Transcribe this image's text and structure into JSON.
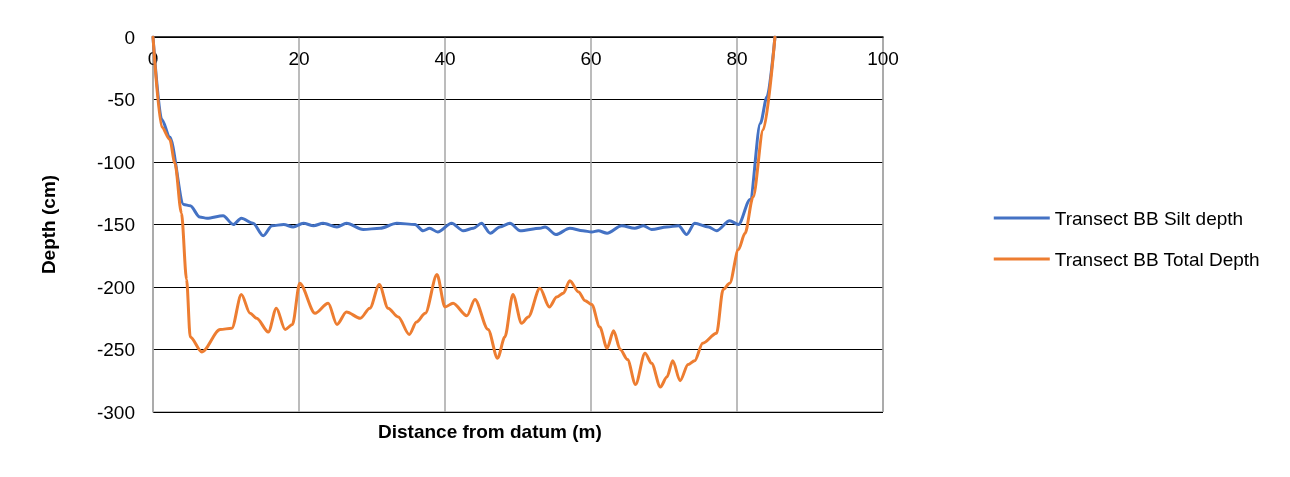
{
  "chart_data": {
    "type": "line",
    "xlabel": "Distance from datum (m)",
    "ylabel": "Depth (cm)",
    "xlim": [
      0,
      100
    ],
    "xticks": [
      0,
      20,
      40,
      60,
      80,
      100
    ],
    "ylim": [
      -300,
      0
    ],
    "yticks": [
      -300,
      -250,
      -200,
      -150,
      -100,
      -50,
      0
    ],
    "grid": true,
    "legend": "right",
    "marker": "none",
    "line_style": "solid",
    "series": [
      {
        "name": "Transect BB Silt depth",
        "color": "#4472c4",
        "x": [
          0,
          1.2,
          2.3,
          4.2,
          5.1,
          6.4,
          7.4,
          9.6,
          11,
          12.1,
          13.7,
          15.1,
          16.3,
          17.9,
          19.2,
          20.6,
          22,
          23.3,
          25.2,
          26.5,
          28.8,
          31.1,
          33.4,
          35.9,
          37,
          37.9,
          39,
          40.9,
          42.5,
          43.9,
          45,
          46.2,
          47.5,
          48.9,
          50.3,
          53,
          53.7,
          55.2,
          57.1,
          58.9,
          60.1,
          61,
          62.2,
          64.2,
          66,
          67.2,
          68.3,
          70.4,
          72,
          73.1,
          74.2,
          76.1,
          77.2,
          79,
          80.2,
          81.8,
          83.2,
          84.1,
          85.2
        ],
        "values": [
          0,
          -66,
          -80,
          -134,
          -135,
          -144,
          -145,
          -143,
          -150,
          -145,
          -149,
          -159,
          -151,
          -150,
          -152,
          -149,
          -151,
          -149,
          -152,
          -149,
          -154,
          -153,
          -149,
          -150,
          -155,
          -153,
          -156,
          -149,
          -155,
          -153,
          -149,
          -157,
          -152,
          -149,
          -155,
          -153,
          -152,
          -158,
          -153,
          -155,
          -156,
          -155,
          -157,
          -151,
          -153,
          -151,
          -154,
          -152,
          -151,
          -158,
          -149,
          -152,
          -155,
          -147,
          -150,
          -130,
          -69,
          -48,
          0
        ]
      },
      {
        "name": "Transect BB Total Depth",
        "color": "#ed7d31",
        "x": [
          0,
          1.2,
          2.3,
          3,
          3.9,
          4.6,
          5.1,
          6.7,
          9.2,
          10.8,
          12.1,
          13.3,
          14.2,
          15.8,
          16.9,
          18.1,
          19.1,
          20.1,
          22.2,
          24,
          25.2,
          26.5,
          28.4,
          29.7,
          31,
          32.2,
          33.6,
          35.1,
          36.1,
          37.3,
          38.9,
          40,
          41.1,
          43,
          44.1,
          45.9,
          47.2,
          48.2,
          49.3,
          50.5,
          51.4,
          53,
          54.3,
          55.3,
          56.2,
          57.1,
          58.3,
          59.2,
          60.1,
          61.2,
          62.2,
          63.1,
          64,
          65,
          66.1,
          67.4,
          68.3,
          69.5,
          70.4,
          71.2,
          72.2,
          73.3,
          74.2,
          75.3,
          77.2,
          78.1,
          79,
          80.2,
          81.1,
          82.2,
          83.6,
          85.2
        ],
        "values": [
          0,
          -72,
          -82,
          -101,
          -141,
          -194,
          -240,
          -252,
          -234,
          -233,
          -206,
          -221,
          -225,
          -236,
          -217,
          -234,
          -230,
          -197,
          -221,
          -213,
          -230,
          -220,
          -225,
          -217,
          -198,
          -217,
          -224,
          -238,
          -228,
          -221,
          -190,
          -216,
          -213,
          -223,
          -210,
          -234,
          -257,
          -240,
          -206,
          -229,
          -224,
          -201,
          -216,
          -208,
          -205,
          -195,
          -204,
          -211,
          -214,
          -232,
          -249,
          -235,
          -250,
          -258,
          -278,
          -253,
          -261,
          -280,
          -272,
          -259,
          -275,
          -262,
          -259,
          -245,
          -237,
          -202,
          -197,
          -170,
          -157,
          -128,
          -74,
          0
        ]
      }
    ]
  }
}
